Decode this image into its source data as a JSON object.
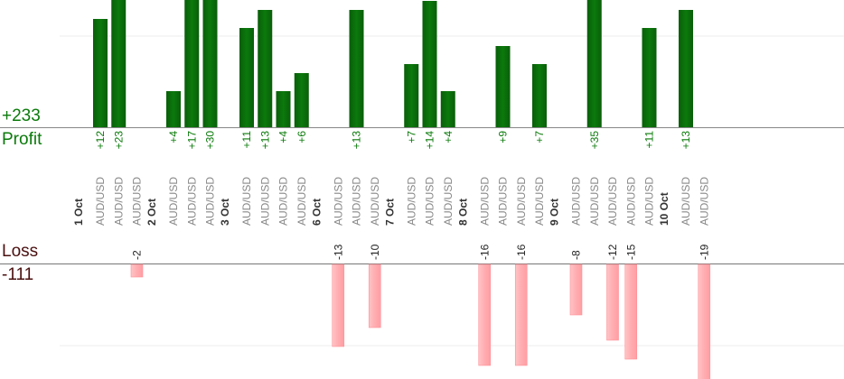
{
  "summary": {
    "profit_total": "+233",
    "profit_label": "Profit",
    "loss_label": "Loss",
    "loss_total": "-111"
  },
  "colors": {
    "profit_bar": "#0b6a0b",
    "profit_text": "#0a7a0a",
    "loss_bar": "#ffb3b6",
    "loss_text": "#222222",
    "date_text": "#333333",
    "symbol_text": "#888888"
  },
  "chart_data": {
    "type": "bar",
    "symbol": "AUD/USD",
    "dates": [
      {
        "label": "1 Oct",
        "trades": [
          "+12",
          "+23",
          "-2"
        ]
      },
      {
        "label": "2 Oct",
        "trades": [
          "+4",
          "+17",
          "+30"
        ]
      },
      {
        "label": "3 Oct",
        "trades": [
          "+11",
          "+13",
          "+4",
          "+6"
        ]
      },
      {
        "label": "6 Oct",
        "trades": [
          "-13",
          "+13",
          "-10"
        ]
      },
      {
        "label": "7 Oct",
        "trades": [
          "+7",
          "+14",
          "+4"
        ]
      },
      {
        "label": "8 Oct",
        "trades": [
          "-16",
          "+9",
          "-16",
          "+7"
        ]
      },
      {
        "label": "9 Oct",
        "trades": [
          "-8",
          "+35",
          "-12",
          "-15",
          "+11"
        ]
      },
      {
        "label": "10 Oct",
        "trades": [
          "+13",
          "-19"
        ]
      }
    ],
    "profit_ylim": [
      0,
      14
    ],
    "loss_ylim": [
      0,
      17
    ],
    "grid": true
  }
}
